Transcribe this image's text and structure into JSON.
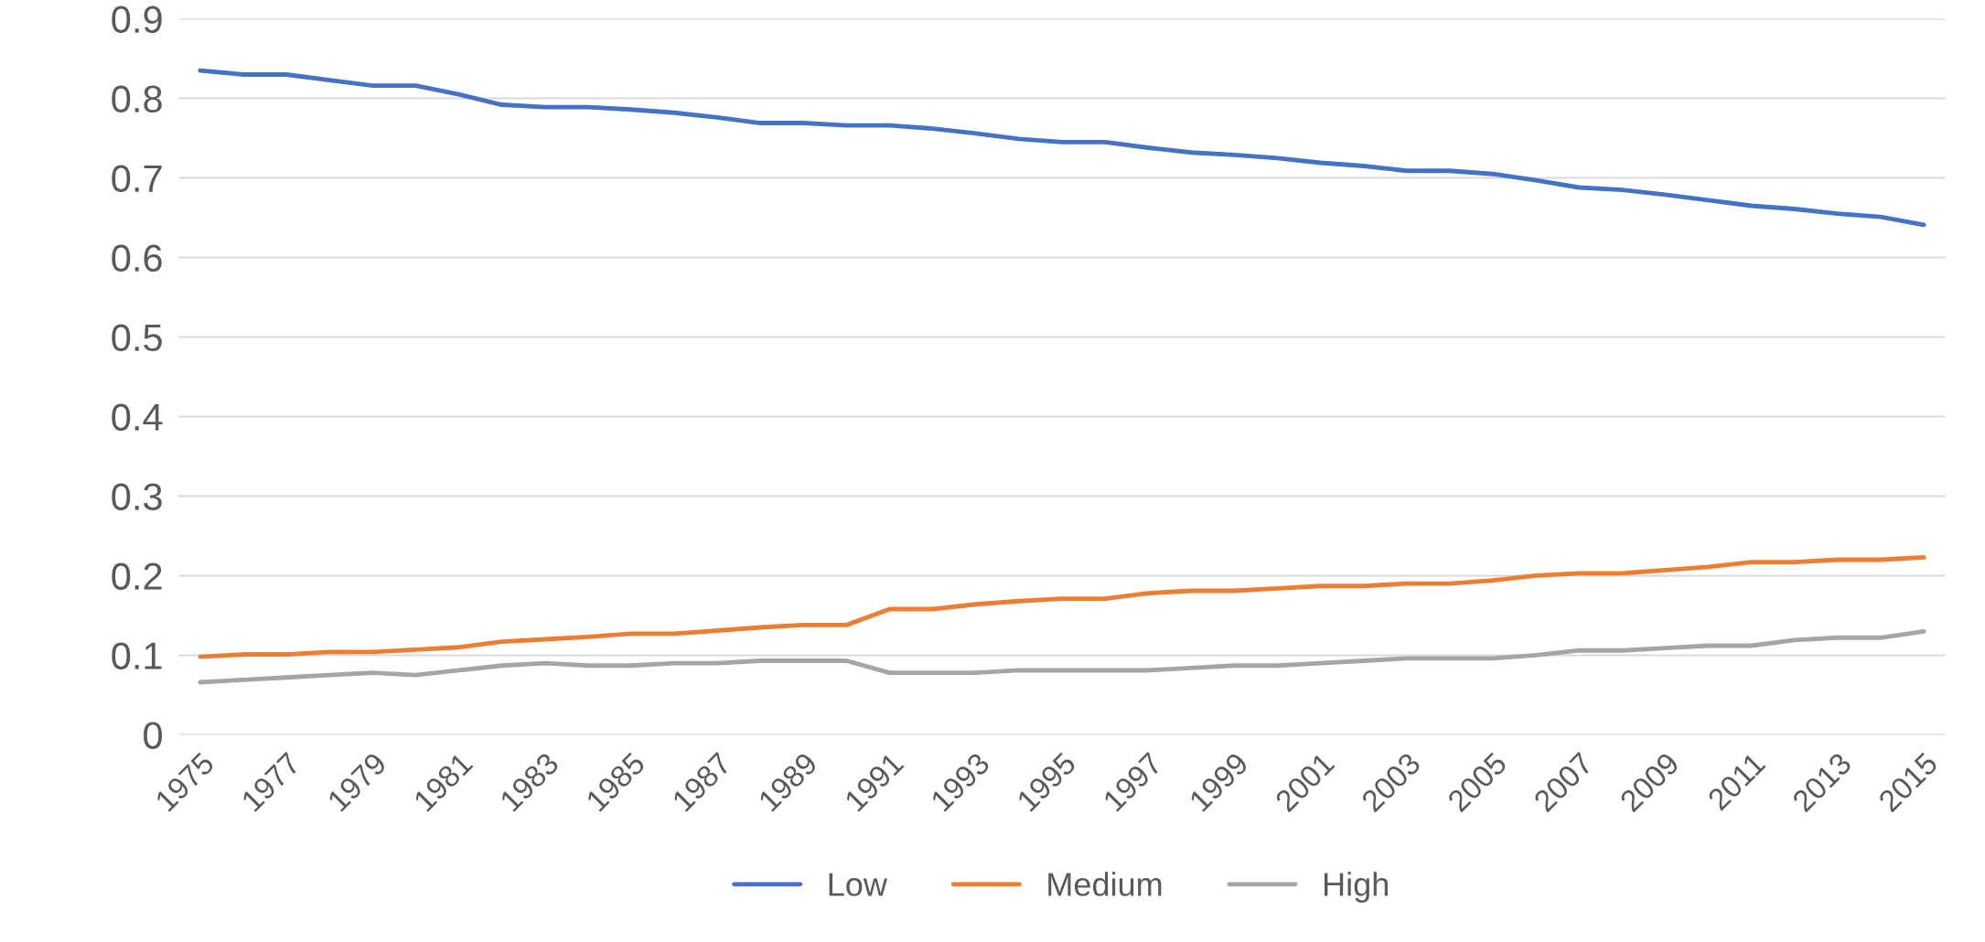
{
  "chart_data": {
    "type": "line",
    "categories": [
      "1975",
      null,
      "1977",
      null,
      "1979",
      null,
      "1981",
      null,
      "1983",
      null,
      "1985",
      null,
      "1987",
      null,
      "1989",
      null,
      "1991",
      null,
      "1993",
      null,
      "1995",
      null,
      "1997",
      null,
      "1999",
      null,
      "2001",
      null,
      "2003",
      null,
      "2005",
      null,
      "2007",
      null,
      "2009",
      null,
      "2011",
      null,
      "2013",
      null,
      "2015"
    ],
    "series": [
      {
        "name": "Low",
        "color": "#4472c4",
        "values": [
          0.835,
          0.83,
          0.83,
          0.823,
          0.816,
          0.816,
          0.805,
          0.792,
          0.789,
          0.789,
          0.786,
          0.782,
          0.776,
          0.769,
          0.769,
          0.766,
          0.766,
          0.762,
          0.756,
          0.749,
          0.745,
          0.745,
          0.738,
          0.732,
          0.729,
          0.725,
          0.719,
          0.715,
          0.709,
          0.709,
          0.705,
          0.697,
          0.688,
          0.685,
          0.679,
          0.672,
          0.665,
          0.661,
          0.655,
          0.651,
          0.641
        ]
      },
      {
        "name": "Medium",
        "color": "#ed7d31",
        "values": [
          0.098,
          0.101,
          0.101,
          0.104,
          0.104,
          0.107,
          0.11,
          0.117,
          0.12,
          0.123,
          0.127,
          0.127,
          0.131,
          0.135,
          0.138,
          0.138,
          0.158,
          0.158,
          0.164,
          0.168,
          0.171,
          0.171,
          0.178,
          0.181,
          0.181,
          0.184,
          0.187,
          0.187,
          0.19,
          0.19,
          0.194,
          0.2,
          0.203,
          0.203,
          0.207,
          0.211,
          0.217,
          0.217,
          0.22,
          0.22,
          0.223
        ]
      },
      {
        "name": "High",
        "color": "#a5a5a5",
        "values": [
          0.066,
          0.069,
          0.072,
          0.075,
          0.078,
          0.075,
          0.081,
          0.087,
          0.09,
          0.087,
          0.087,
          0.09,
          0.09,
          0.093,
          0.093,
          0.093,
          0.078,
          0.078,
          0.078,
          0.081,
          0.081,
          0.081,
          0.081,
          0.084,
          0.087,
          0.087,
          0.09,
          0.093,
          0.096,
          0.096,
          0.096,
          0.1,
          0.106,
          0.106,
          0.109,
          0.112,
          0.112,
          0.119,
          0.122,
          0.122,
          0.13
        ]
      }
    ],
    "ylim": [
      0,
      0.9
    ],
    "yticks": [
      0,
      0.1,
      0.2,
      0.3,
      0.4,
      0.5,
      0.6,
      0.7,
      0.8,
      0.9
    ],
    "grid": "y",
    "legend": "bottom"
  }
}
